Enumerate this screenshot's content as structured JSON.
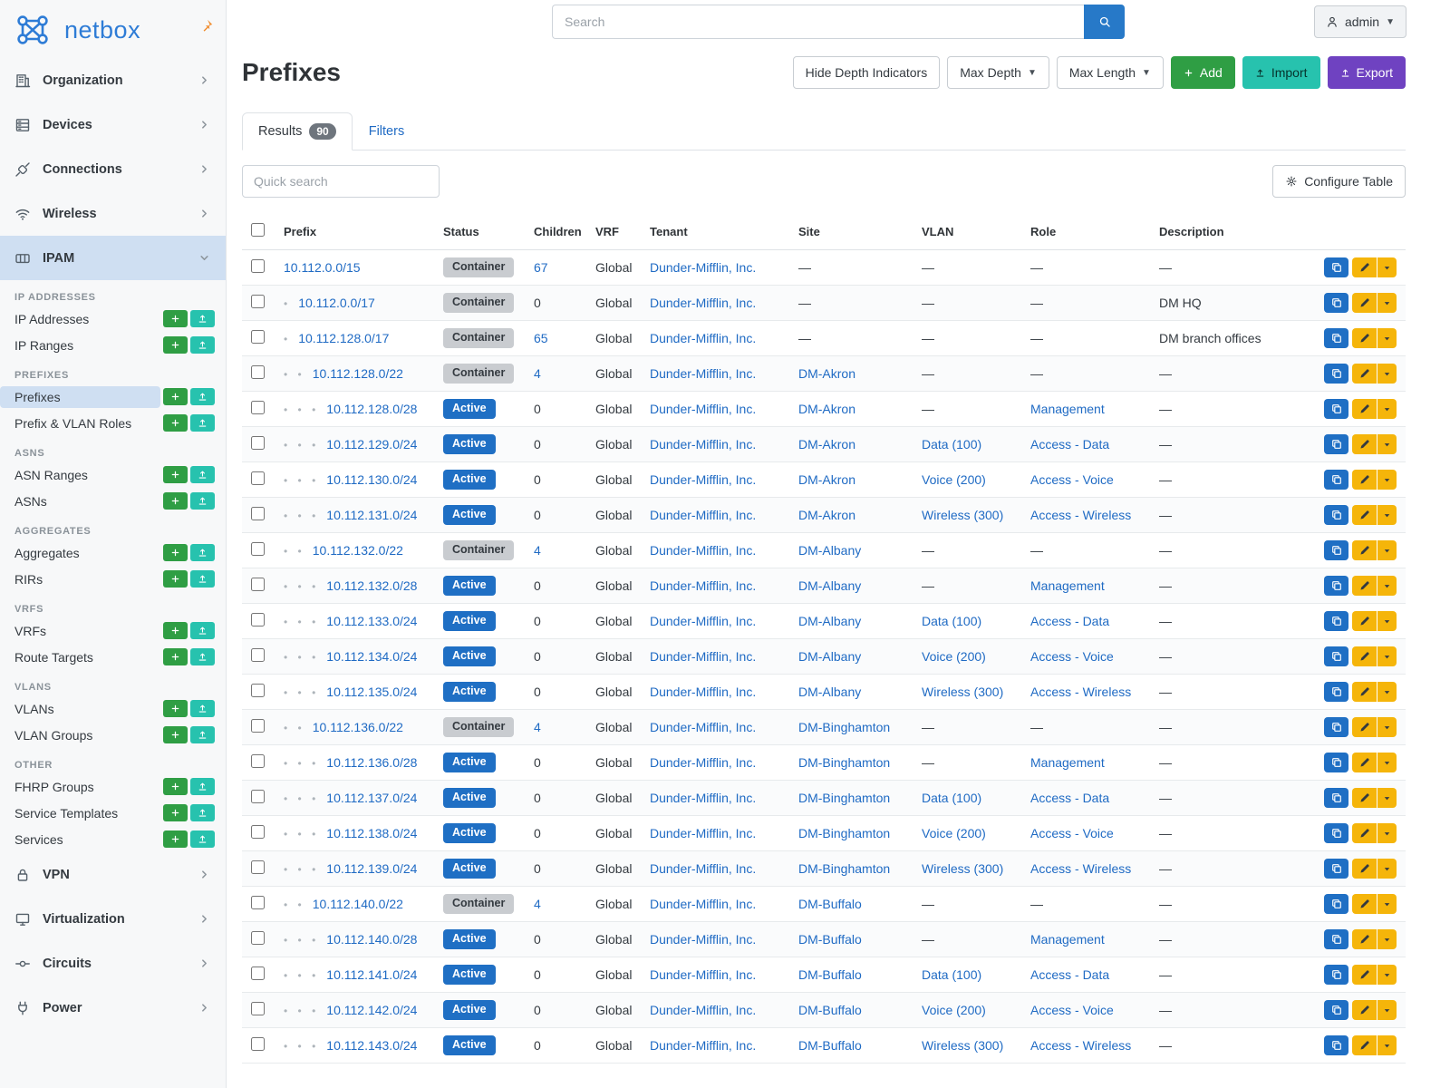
{
  "brand": {
    "name": "netbox"
  },
  "topbar": {
    "search_placeholder": "Search",
    "user_label": "admin"
  },
  "colors": {
    "brand_blue": "#2e7cd6",
    "link": "#206bc4",
    "active_badge": "#1f6fc4",
    "container_badge": "#c9ccd0",
    "add_green": "#2f9e44",
    "import_teal": "#27c2ae",
    "export_purple": "#6f42c1",
    "edit_yellow": "#f5b50a",
    "pin_orange": "#f08c2e"
  },
  "sidebar": {
    "top_items": [
      {
        "id": "organization",
        "label": "Organization",
        "icon": "building-icon"
      },
      {
        "id": "devices",
        "label": "Devices",
        "icon": "devices-icon"
      },
      {
        "id": "connections",
        "label": "Connections",
        "icon": "connections-icon"
      },
      {
        "id": "wireless",
        "label": "Wireless",
        "icon": "wireless-icon"
      }
    ],
    "active_item": {
      "id": "ipam",
      "label": "IPAM",
      "icon": "ipam-icon"
    },
    "ipam_groups": [
      {
        "heading": "IP ADDRESSES",
        "items": [
          {
            "label": "IP Addresses"
          },
          {
            "label": "IP Ranges"
          }
        ]
      },
      {
        "heading": "PREFIXES",
        "items": [
          {
            "label": "Prefixes",
            "active": true
          },
          {
            "label": "Prefix & VLAN Roles"
          }
        ]
      },
      {
        "heading": "ASNS",
        "items": [
          {
            "label": "ASN Ranges"
          },
          {
            "label": "ASNs"
          }
        ]
      },
      {
        "heading": "AGGREGATES",
        "items": [
          {
            "label": "Aggregates"
          },
          {
            "label": "RIRs"
          }
        ]
      },
      {
        "heading": "VRFS",
        "items": [
          {
            "label": "VRFs"
          },
          {
            "label": "Route Targets"
          }
        ]
      },
      {
        "heading": "VLANS",
        "items": [
          {
            "label": "VLANs"
          },
          {
            "label": "VLAN Groups"
          }
        ]
      },
      {
        "heading": "OTHER",
        "items": [
          {
            "label": "FHRP Groups"
          },
          {
            "label": "Service Templates"
          },
          {
            "label": "Services"
          }
        ]
      }
    ],
    "bottom_items": [
      {
        "id": "vpn",
        "label": "VPN",
        "icon": "vpn-icon"
      },
      {
        "id": "virtualization",
        "label": "Virtualization",
        "icon": "virtualization-icon"
      },
      {
        "id": "circuits",
        "label": "Circuits",
        "icon": "circuits-icon"
      },
      {
        "id": "power",
        "label": "Power",
        "icon": "power-icon"
      }
    ]
  },
  "page": {
    "title": "Prefixes",
    "toolbar": {
      "hide_depth": "Hide Depth Indicators",
      "max_depth": "Max Depth",
      "max_length": "Max Length",
      "add": "Add",
      "import": "Import",
      "export": "Export"
    },
    "tabs": {
      "results": "Results",
      "results_count": "90",
      "filters": "Filters"
    },
    "quick_search_placeholder": "Quick search",
    "configure_table": "Configure Table"
  },
  "table": {
    "columns": [
      "Prefix",
      "Status",
      "Children",
      "VRF",
      "Tenant",
      "Site",
      "VLAN",
      "Role",
      "Description"
    ],
    "rows": [
      {
        "depth": 0,
        "prefix": "10.112.0.0/15",
        "status": "Container",
        "children": "67",
        "children_link": true,
        "vrf": "Global",
        "tenant": "Dunder-Mifflin, Inc.",
        "site": "—",
        "vlan": "—",
        "role": "—",
        "description": "—"
      },
      {
        "depth": 1,
        "prefix": "10.112.0.0/17",
        "status": "Container",
        "children": "0",
        "children_link": false,
        "vrf": "Global",
        "tenant": "Dunder-Mifflin, Inc.",
        "site": "—",
        "vlan": "—",
        "role": "—",
        "description": "DM HQ"
      },
      {
        "depth": 1,
        "prefix": "10.112.128.0/17",
        "status": "Container",
        "children": "65",
        "children_link": true,
        "vrf": "Global",
        "tenant": "Dunder-Mifflin, Inc.",
        "site": "—",
        "vlan": "—",
        "role": "—",
        "description": "DM branch offices"
      },
      {
        "depth": 2,
        "prefix": "10.112.128.0/22",
        "status": "Container",
        "children": "4",
        "children_link": true,
        "vrf": "Global",
        "tenant": "Dunder-Mifflin, Inc.",
        "site": "DM-Akron",
        "vlan": "—",
        "role": "—",
        "description": "—"
      },
      {
        "depth": 3,
        "prefix": "10.112.128.0/28",
        "status": "Active",
        "children": "0",
        "children_link": false,
        "vrf": "Global",
        "tenant": "Dunder-Mifflin, Inc.",
        "site": "DM-Akron",
        "vlan": "—",
        "role": "Management",
        "description": "—"
      },
      {
        "depth": 3,
        "prefix": "10.112.129.0/24",
        "status": "Active",
        "children": "0",
        "children_link": false,
        "vrf": "Global",
        "tenant": "Dunder-Mifflin, Inc.",
        "site": "DM-Akron",
        "vlan": "Data (100)",
        "role": "Access - Data",
        "description": "—"
      },
      {
        "depth": 3,
        "prefix": "10.112.130.0/24",
        "status": "Active",
        "children": "0",
        "children_link": false,
        "vrf": "Global",
        "tenant": "Dunder-Mifflin, Inc.",
        "site": "DM-Akron",
        "vlan": "Voice (200)",
        "role": "Access - Voice",
        "description": "—"
      },
      {
        "depth": 3,
        "prefix": "10.112.131.0/24",
        "status": "Active",
        "children": "0",
        "children_link": false,
        "vrf": "Global",
        "tenant": "Dunder-Mifflin, Inc.",
        "site": "DM-Akron",
        "vlan": "Wireless (300)",
        "role": "Access - Wireless",
        "description": "—"
      },
      {
        "depth": 2,
        "prefix": "10.112.132.0/22",
        "status": "Container",
        "children": "4",
        "children_link": true,
        "vrf": "Global",
        "tenant": "Dunder-Mifflin, Inc.",
        "site": "DM-Albany",
        "vlan": "—",
        "role": "—",
        "description": "—"
      },
      {
        "depth": 3,
        "prefix": "10.112.132.0/28",
        "status": "Active",
        "children": "0",
        "children_link": false,
        "vrf": "Global",
        "tenant": "Dunder-Mifflin, Inc.",
        "site": "DM-Albany",
        "vlan": "—",
        "role": "Management",
        "description": "—"
      },
      {
        "depth": 3,
        "prefix": "10.112.133.0/24",
        "status": "Active",
        "children": "0",
        "children_link": false,
        "vrf": "Global",
        "tenant": "Dunder-Mifflin, Inc.",
        "site": "DM-Albany",
        "vlan": "Data (100)",
        "role": "Access - Data",
        "description": "—"
      },
      {
        "depth": 3,
        "prefix": "10.112.134.0/24",
        "status": "Active",
        "children": "0",
        "children_link": false,
        "vrf": "Global",
        "tenant": "Dunder-Mifflin, Inc.",
        "site": "DM-Albany",
        "vlan": "Voice (200)",
        "role": "Access - Voice",
        "description": "—"
      },
      {
        "depth": 3,
        "prefix": "10.112.135.0/24",
        "status": "Active",
        "children": "0",
        "children_link": false,
        "vrf": "Global",
        "tenant": "Dunder-Mifflin, Inc.",
        "site": "DM-Albany",
        "vlan": "Wireless (300)",
        "role": "Access - Wireless",
        "description": "—"
      },
      {
        "depth": 2,
        "prefix": "10.112.136.0/22",
        "status": "Container",
        "children": "4",
        "children_link": true,
        "vrf": "Global",
        "tenant": "Dunder-Mifflin, Inc.",
        "site": "DM-Binghamton",
        "vlan": "—",
        "role": "—",
        "description": "—"
      },
      {
        "depth": 3,
        "prefix": "10.112.136.0/28",
        "status": "Active",
        "children": "0",
        "children_link": false,
        "vrf": "Global",
        "tenant": "Dunder-Mifflin, Inc.",
        "site": "DM-Binghamton",
        "vlan": "—",
        "role": "Management",
        "description": "—"
      },
      {
        "depth": 3,
        "prefix": "10.112.137.0/24",
        "status": "Active",
        "children": "0",
        "children_link": false,
        "vrf": "Global",
        "tenant": "Dunder-Mifflin, Inc.",
        "site": "DM-Binghamton",
        "vlan": "Data (100)",
        "role": "Access - Data",
        "description": "—"
      },
      {
        "depth": 3,
        "prefix": "10.112.138.0/24",
        "status": "Active",
        "children": "0",
        "children_link": false,
        "vrf": "Global",
        "tenant": "Dunder-Mifflin, Inc.",
        "site": "DM-Binghamton",
        "vlan": "Voice (200)",
        "role": "Access - Voice",
        "description": "—"
      },
      {
        "depth": 3,
        "prefix": "10.112.139.0/24",
        "status": "Active",
        "children": "0",
        "children_link": false,
        "vrf": "Global",
        "tenant": "Dunder-Mifflin, Inc.",
        "site": "DM-Binghamton",
        "vlan": "Wireless (300)",
        "role": "Access - Wireless",
        "description": "—"
      },
      {
        "depth": 2,
        "prefix": "10.112.140.0/22",
        "status": "Container",
        "children": "4",
        "children_link": true,
        "vrf": "Global",
        "tenant": "Dunder-Mifflin, Inc.",
        "site": "DM-Buffalo",
        "vlan": "—",
        "role": "—",
        "description": "—"
      },
      {
        "depth": 3,
        "prefix": "10.112.140.0/28",
        "status": "Active",
        "children": "0",
        "children_link": false,
        "vrf": "Global",
        "tenant": "Dunder-Mifflin, Inc.",
        "site": "DM-Buffalo",
        "vlan": "—",
        "role": "Management",
        "description": "—"
      },
      {
        "depth": 3,
        "prefix": "10.112.141.0/24",
        "status": "Active",
        "children": "0",
        "children_link": false,
        "vrf": "Global",
        "tenant": "Dunder-Mifflin, Inc.",
        "site": "DM-Buffalo",
        "vlan": "Data (100)",
        "role": "Access - Data",
        "description": "—"
      },
      {
        "depth": 3,
        "prefix": "10.112.142.0/24",
        "status": "Active",
        "children": "0",
        "children_link": false,
        "vrf": "Global",
        "tenant": "Dunder-Mifflin, Inc.",
        "site": "DM-Buffalo",
        "vlan": "Voice (200)",
        "role": "Access - Voice",
        "description": "—"
      },
      {
        "depth": 3,
        "prefix": "10.112.143.0/24",
        "status": "Active",
        "children": "0",
        "children_link": false,
        "vrf": "Global",
        "tenant": "Dunder-Mifflin, Inc.",
        "site": "DM-Buffalo",
        "vlan": "Wireless (300)",
        "role": "Access - Wireless",
        "description": "—"
      }
    ]
  }
}
